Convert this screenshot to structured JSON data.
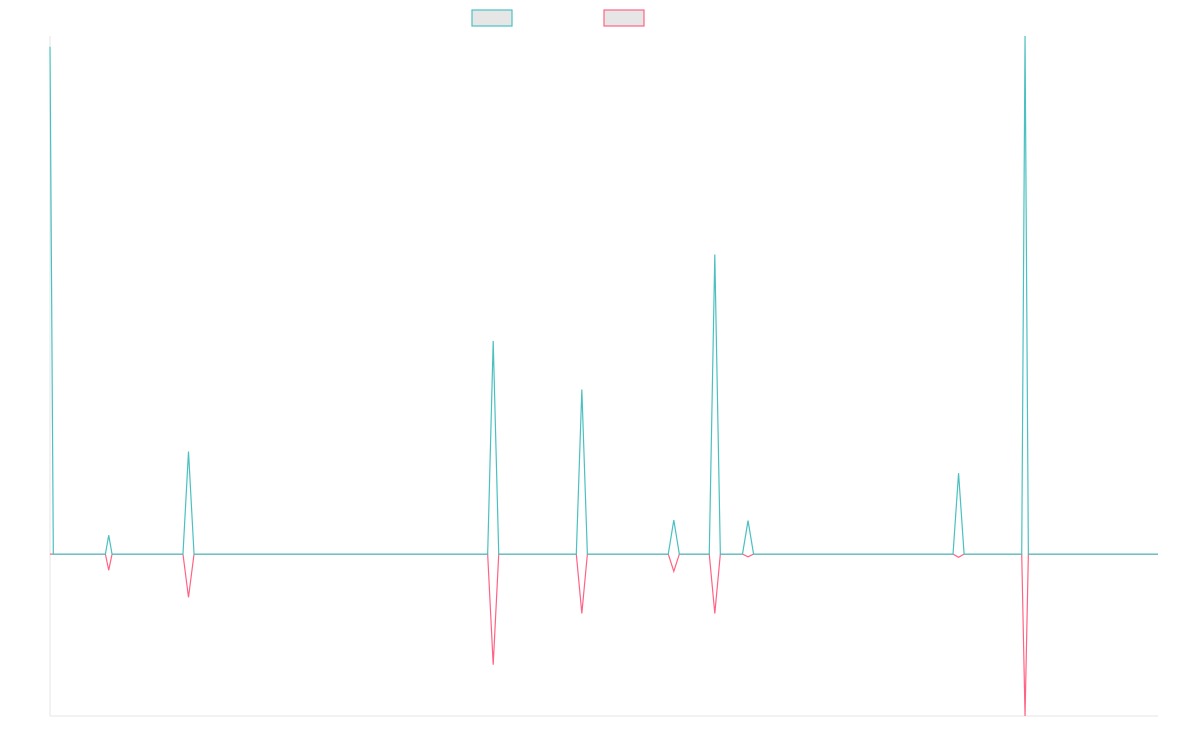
{
  "chart_data": {
    "type": "line",
    "title": "",
    "xlabel": "",
    "ylabel": "",
    "x": [
      0,
      3,
      30,
      50,
      53,
      56,
      59,
      70,
      80,
      100,
      120,
      125,
      130,
      150,
      160,
      170,
      180,
      195,
      200,
      205,
      220,
      240,
      260,
      280,
      300,
      320,
      340,
      360,
      380,
      395,
      400,
      405,
      420,
      440,
      460,
      475,
      480,
      485,
      490,
      495,
      520,
      540,
      558,
      563,
      568,
      575,
      585,
      590,
      595,
      600,
      605,
      610,
      625,
      630,
      635,
      660,
      680,
      700,
      720,
      740,
      760,
      780,
      800,
      815,
      820,
      825,
      840,
      860,
      877,
      880,
      883,
      900,
      950,
      1000
    ],
    "ylim": [
      -30,
      96
    ],
    "series": [
      {
        "color": "#4bc0c0",
        "values": [
          94,
          0,
          0,
          0,
          3.5,
          0,
          0,
          0,
          0,
          0,
          0,
          19,
          0,
          0,
          0,
          0,
          0,
          0,
          0,
          0,
          0,
          0,
          0,
          0,
          0,
          0,
          0,
          0,
          0,
          0,
          39.5,
          0,
          0,
          0,
          0,
          0,
          30.5,
          0,
          0,
          0,
          0,
          0,
          0,
          6.3,
          0,
          0,
          0,
          0,
          0,
          55.5,
          0,
          0,
          0,
          6.2,
          0,
          0,
          0,
          0,
          0,
          0,
          0,
          0,
          0,
          0,
          15,
          0,
          0,
          0,
          0,
          96,
          0,
          0,
          0,
          0
        ]
      },
      {
        "color": "#ff6384",
        "values": [
          0,
          0,
          0,
          0,
          -3,
          0,
          0,
          0,
          0,
          0,
          0,
          -8,
          0,
          0,
          0,
          0,
          0,
          0,
          0,
          0,
          0,
          0,
          0,
          0,
          0,
          0,
          0,
          0,
          0,
          0,
          -20.5,
          0,
          0,
          0,
          0,
          0,
          -11,
          0,
          0,
          0,
          0,
          0,
          0,
          -3.2,
          0,
          0,
          0,
          0,
          0,
          -11,
          0,
          0,
          0,
          -0.5,
          0,
          0,
          0,
          0,
          0,
          0,
          0,
          0,
          0,
          0,
          -0.6,
          0,
          0,
          0,
          0,
          -30,
          0,
          0,
          0,
          0
        ]
      }
    ],
    "legend": {
      "position": "top",
      "entries": [
        "",
        ""
      ]
    },
    "grid": false
  }
}
